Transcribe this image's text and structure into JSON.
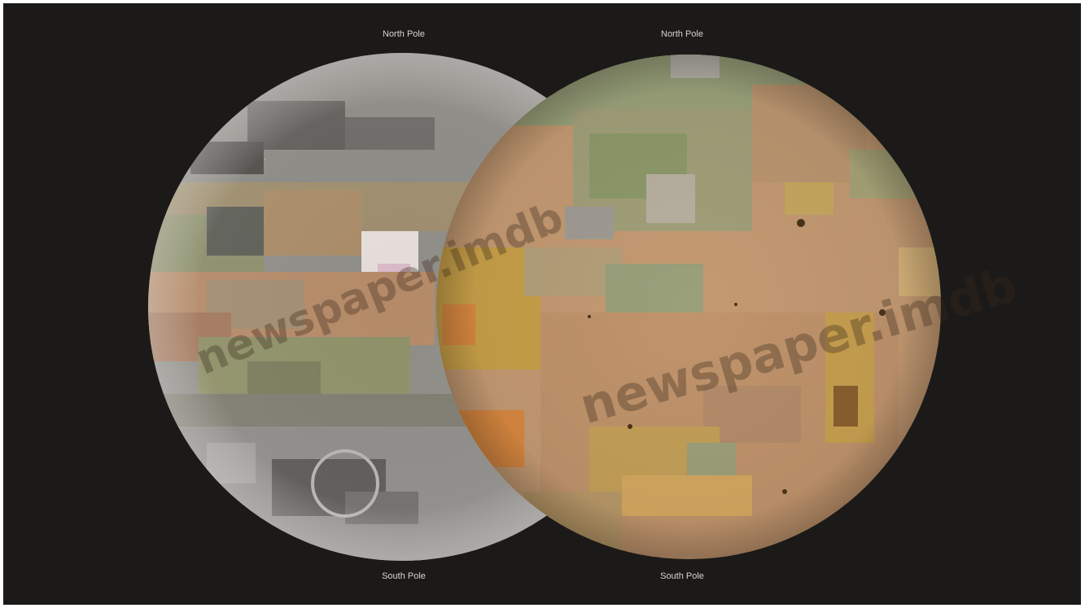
{
  "left_globe": {
    "north_label": "North Pole",
    "south_label": "South Pole"
  },
  "right_globe": {
    "north_label": "North Pole",
    "south_label": "South Pole"
  },
  "watermark": {
    "text": "newspaper.imdb"
  },
  "colors": {
    "background": "#1c1a18",
    "left_globe_gray": "#8e8c86",
    "left_globe_brown": "#b48a68",
    "left_globe_green": "#8e9068",
    "right_globe_tan": "#c49a72",
    "right_globe_green": "#9aa27a",
    "right_globe_yellow": "#c8a048",
    "right_globe_orange": "#d88840"
  }
}
